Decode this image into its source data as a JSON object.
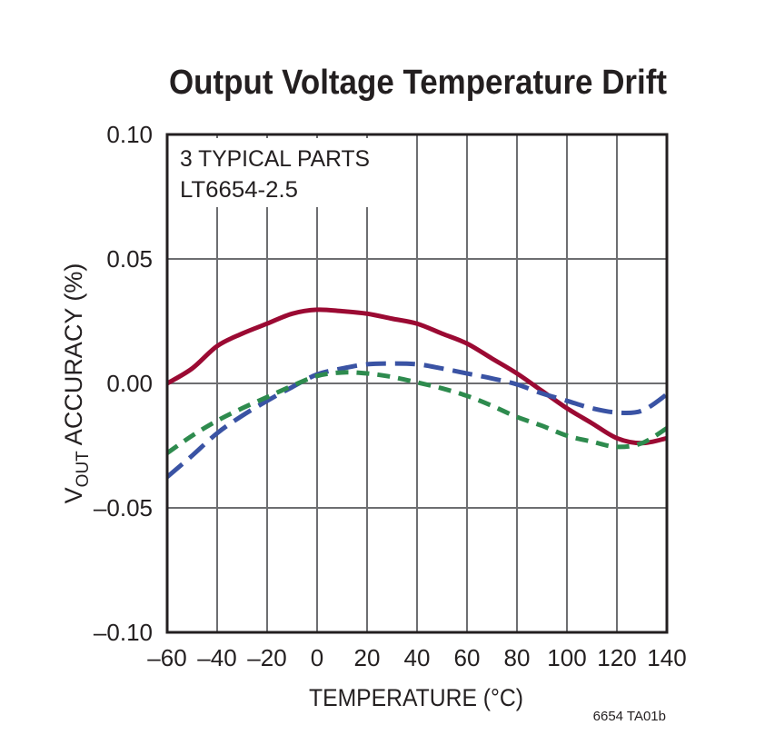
{
  "chart_data": {
    "type": "line",
    "title": "Output Voltage Temperature Drift",
    "xlabel": "TEMPERATURE (°C)",
    "ylabel_main": "V",
    "ylabel_sub": "OUT",
    "ylabel_rest": " ACCURACY (%)",
    "xlim": [
      -60,
      140
    ],
    "ylim": [
      -0.1,
      0.1
    ],
    "xticks": [
      -60,
      -40,
      -20,
      0,
      20,
      40,
      60,
      80,
      100,
      120,
      140
    ],
    "xtick_labels": [
      "–60",
      "–40",
      "–20",
      "0",
      "20",
      "40",
      "60",
      "80",
      "100",
      "120",
      "140"
    ],
    "yticks": [
      0.1,
      0.05,
      0.0,
      -0.05,
      -0.1
    ],
    "ytick_labels": [
      "0.10",
      "0.05",
      "0.00",
      "–0.05",
      "–0.10"
    ],
    "grid": true,
    "annotations": [
      "3 TYPICAL PARTS",
      "LT6654-2.5"
    ],
    "figure_id": "6654 TA01b",
    "x": [
      -60,
      -50,
      -40,
      -30,
      -20,
      -10,
      0,
      10,
      20,
      30,
      40,
      50,
      60,
      70,
      80,
      90,
      100,
      110,
      120,
      130,
      140
    ],
    "series": [
      {
        "color": "#9b0a33",
        "style": "solid",
        "values": [
          0.0,
          0.006,
          0.015,
          0.02,
          0.024,
          0.028,
          0.0296,
          0.029,
          0.028,
          0.026,
          0.024,
          0.02,
          0.016,
          0.01,
          0.004,
          -0.003,
          -0.01,
          -0.016,
          -0.022,
          -0.024,
          -0.022
        ]
      },
      {
        "color": "#3a53a4",
        "style": "long-dash",
        "values": [
          -0.0376,
          -0.029,
          -0.02,
          -0.013,
          -0.007,
          -0.0015,
          0.0036,
          0.006,
          0.0077,
          0.008,
          0.0077,
          0.006,
          0.004,
          0.002,
          -0.0004,
          -0.004,
          -0.007,
          -0.01,
          -0.0117,
          -0.011,
          -0.0044
        ]
      },
      {
        "color": "#2e8b4e",
        "style": "short-dash",
        "values": [
          -0.028,
          -0.021,
          -0.015,
          -0.01,
          -0.0055,
          -0.001,
          0.003,
          0.0044,
          0.004,
          0.0026,
          0.0004,
          -0.002,
          -0.005,
          -0.009,
          -0.0135,
          -0.017,
          -0.021,
          -0.0234,
          -0.0255,
          -0.024,
          -0.018
        ]
      }
    ]
  }
}
